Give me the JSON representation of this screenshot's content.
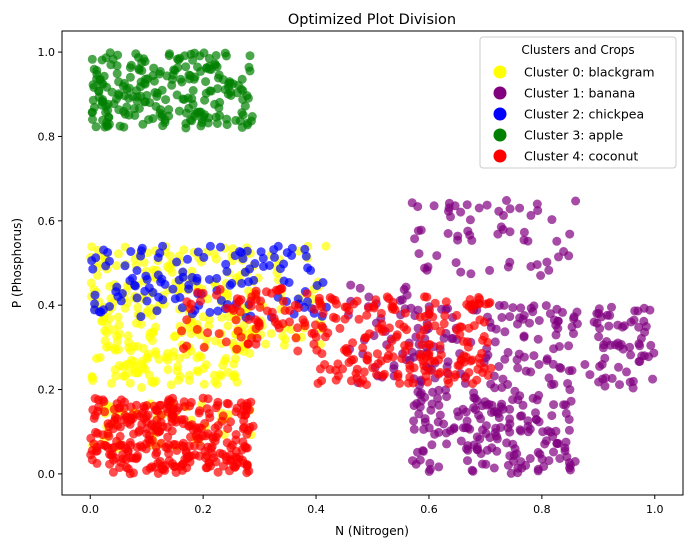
{
  "chart_data": {
    "type": "scatter",
    "title": "Optimized Plot Division",
    "xlabel": "N (Nitrogen)",
    "ylabel": "P (Phosphorus)",
    "xlim": [
      -0.05,
      1.05
    ],
    "ylim": [
      -0.05,
      1.05
    ],
    "x_ticks": [
      0.0,
      0.2,
      0.4,
      0.6,
      0.8,
      1.0
    ],
    "y_ticks": [
      0.0,
      0.2,
      0.4,
      0.6,
      0.8,
      1.0
    ],
    "x_tick_labels": [
      "0.0",
      "0.2",
      "0.4",
      "0.6",
      "0.8",
      "1.0"
    ],
    "y_tick_labels": [
      "0.0",
      "0.2",
      "0.4",
      "0.6",
      "0.8",
      "1.0"
    ],
    "grid": false,
    "legend": {
      "title": "Clusters and Crops",
      "placement": "top-right",
      "entries": [
        "Cluster 0: blackgram",
        "Cluster 1: banana",
        "Cluster 2: chickpea",
        "Cluster 3: apple",
        "Cluster 4: coconut"
      ]
    },
    "series": [
      {
        "name": "Cluster 0: blackgram",
        "color": "#ffff00",
        "regions_x": [
          [
            0.0,
            0.29
          ],
          [
            0.0,
            0.29
          ],
          [
            0.29,
            0.42
          ]
        ],
        "regions_y": [
          [
            0.2,
            0.54
          ],
          [
            0.06,
            0.17
          ],
          [
            0.3,
            0.54
          ]
        ],
        "region_counts": [
          300,
          40,
          40
        ]
      },
      {
        "name": "Cluster 1: banana",
        "color": "#800080",
        "regions_x": [
          [
            0.57,
            0.86
          ],
          [
            0.57,
            0.86
          ],
          [
            0.57,
            1.0
          ],
          [
            0.44,
            0.6
          ]
        ],
        "regions_y": [
          [
            0.0,
            0.2
          ],
          [
            0.47,
            0.65
          ],
          [
            0.2,
            0.4
          ],
          [
            0.21,
            0.45
          ]
        ],
        "region_counts": [
          180,
          60,
          180,
          40
        ]
      },
      {
        "name": "Cluster 2: chickpea",
        "color": "#0000ff",
        "regions_x": [
          [
            0.0,
            0.42
          ]
        ],
        "regions_y": [
          [
            0.37,
            0.54
          ]
        ],
        "region_counts": [
          130
        ]
      },
      {
        "name": "Cluster 3: apple",
        "color": "#008000",
        "regions_x": [
          [
            0.0,
            0.29
          ]
        ],
        "regions_y": [
          [
            0.82,
            1.0
          ]
        ],
        "region_counts": [
          230
        ]
      },
      {
        "name": "Cluster 4: coconut",
        "color": "#ff0000",
        "regions_x": [
          [
            0.0,
            0.29
          ],
          [
            0.16,
            0.4
          ],
          [
            0.4,
            0.71
          ]
        ],
        "regions_y": [
          [
            0.0,
            0.18
          ],
          [
            0.29,
            0.44
          ],
          [
            0.21,
            0.42
          ]
        ],
        "region_counts": [
          320,
          80,
          200
        ]
      }
    ]
  }
}
